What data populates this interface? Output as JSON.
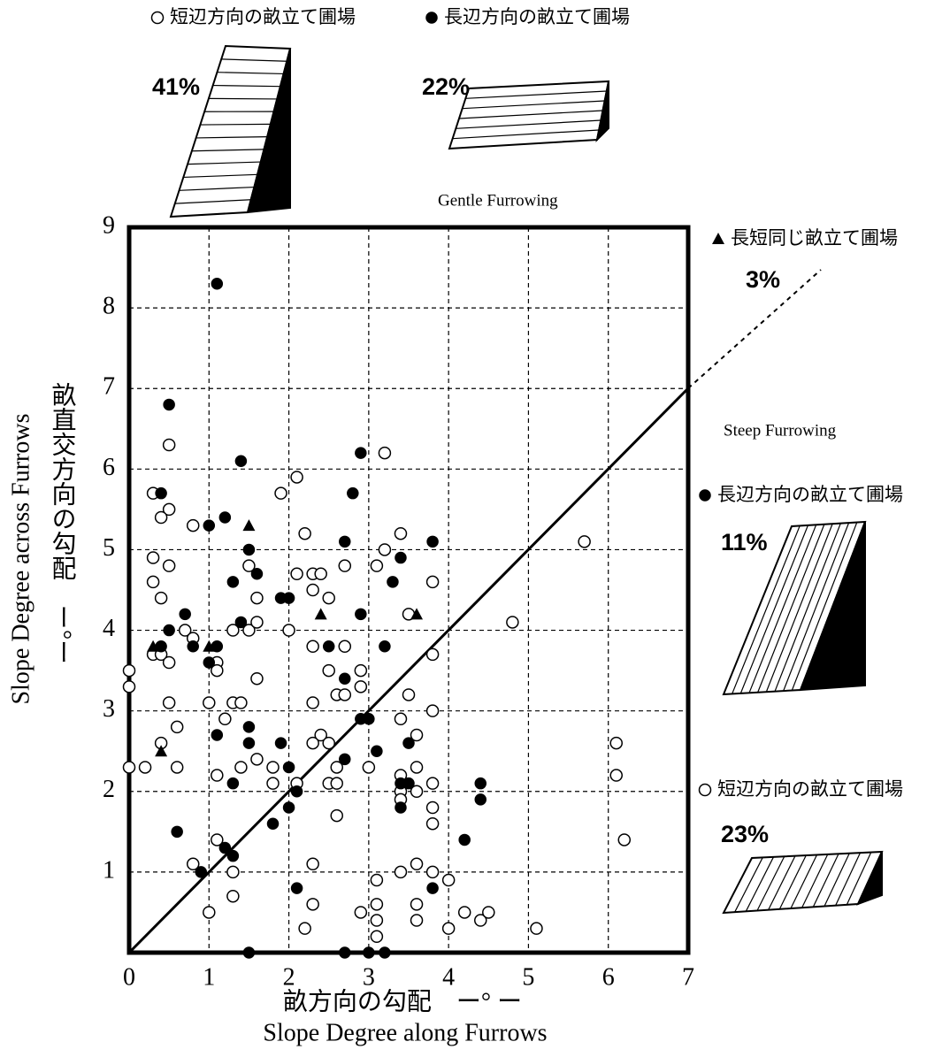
{
  "chart_data": {
    "type": "scatter",
    "xlabel": "畝方向の勾配　ー° ー",
    "xlabel_en": "Slope Degree along Furrows",
    "ylabel": "畝直交方向の勾配　ー°ー",
    "ylabel_en": "Slope Degree across Furrows",
    "xlim": [
      0,
      7
    ],
    "xticks": [
      0,
      1,
      2,
      3,
      4,
      5,
      6,
      7
    ],
    "ylim": [
      0,
      9
    ],
    "yticks": [
      1,
      2,
      3,
      4,
      5,
      6,
      7,
      8,
      9
    ],
    "grid": true,
    "series": [
      {
        "name": "短辺方向の畝立て圃場",
        "marker": "circle-open",
        "color": "#000000",
        "x": [
          0,
          0,
          0,
          0.2,
          0.3,
          0.5,
          0.5,
          0.4,
          0.8,
          0.3,
          0.5,
          0.3,
          0.4,
          0.7,
          0.8,
          0.3,
          0.4,
          0.5,
          1.1,
          1.1,
          0.5,
          1.0,
          1.3,
          1.4,
          0.6,
          1.2,
          0.4,
          0.6,
          1.1,
          1.4,
          1.6,
          1.8,
          1.8,
          2.1,
          0.8,
          1.1,
          1.3,
          1.0,
          1.3,
          1.5,
          1.6,
          1.6,
          1.5,
          1.6,
          1.9,
          2.1,
          2.2,
          2.1,
          2.3,
          2.3,
          2.4,
          2.5,
          2.0,
          2.3,
          2.7,
          2.5,
          2.6,
          2.7,
          2.9,
          2.9,
          2.7,
          3.1,
          3.2,
          3.2,
          3.4,
          3.5,
          3.8,
          3.8,
          3.8,
          3.5,
          3.4,
          3.6,
          2.3,
          2.4,
          2.3,
          2.5,
          2.6,
          2.5,
          2.6,
          3.0,
          3.4,
          3.4,
          3.4,
          3.6,
          3.6,
          3.8,
          3.8,
          3.8,
          2.6,
          2.3,
          1.3,
          2.2,
          2.3,
          2.9,
          3.1,
          3.1,
          3.1,
          3.1,
          3.4,
          3.6,
          3.6,
          3.6,
          3.8,
          4.0,
          4.0,
          4.2,
          4.4,
          4.5,
          4.8,
          5.1,
          5.7,
          6.1,
          6.1,
          6.2
        ],
        "values": [
          3.5,
          3.3,
          2.3,
          2.3,
          5.7,
          6.3,
          5.5,
          5.4,
          5.3,
          4.9,
          4.8,
          4.6,
          4.4,
          4.0,
          3.9,
          3.7,
          3.7,
          3.6,
          3.6,
          3.5,
          3.1,
          3.1,
          3.1,
          3.1,
          2.8,
          2.9,
          2.6,
          2.3,
          2.2,
          2.3,
          2.4,
          2.1,
          2.3,
          2.1,
          1.1,
          1.4,
          0.7,
          0.5,
          4.0,
          4.0,
          4.1,
          4.4,
          4.8,
          3.4,
          5.7,
          5.9,
          5.2,
          4.7,
          4.7,
          4.5,
          4.7,
          4.4,
          4.0,
          3.8,
          3.8,
          3.5,
          3.2,
          3.2,
          3.3,
          3.5,
          4.8,
          4.8,
          5.0,
          6.2,
          5.2,
          4.2,
          4.6,
          3.7,
          3.0,
          3.2,
          2.9,
          2.7,
          3.1,
          2.7,
          2.6,
          2.6,
          2.3,
          2.1,
          2.1,
          2.3,
          2.2,
          2.0,
          1.9,
          2.3,
          2.0,
          2.1,
          1.8,
          1.6,
          1.7,
          1.1,
          1.0,
          0.3,
          0.6,
          0.5,
          0.9,
          0.6,
          0.4,
          0.2,
          1.0,
          1.1,
          0.6,
          0.4,
          1.0,
          0.9,
          0.3,
          0.5,
          0.4,
          0.5,
          4.1,
          0.3,
          5.1,
          2.6,
          2.2,
          1.4
        ]
      },
      {
        "name": "長辺方向の畝立て圃場",
        "marker": "circle",
        "color": "#000000",
        "x": [
          1.1,
          0.5,
          1.4,
          2.9,
          2.8,
          0.4,
          1.2,
          1.0,
          1.5,
          3.8,
          2.7,
          3.4,
          3.3,
          1.3,
          1.6,
          1.9,
          2.0,
          0.7,
          2.9,
          0.5,
          1.4,
          0.4,
          0.8,
          1.1,
          2.5,
          3.2,
          1.0,
          2.7,
          1.5,
          2.9,
          3.0,
          1.1,
          1.9,
          1.5,
          3.5,
          3.1,
          2.7,
          2.0,
          1.3,
          3.4,
          3.5,
          4.4,
          2.1,
          2.0,
          3.4,
          4.4,
          1.8,
          0.6,
          4.2,
          1.2,
          1.3,
          0.9,
          2.1,
          3.8,
          1.5,
          2.7,
          3.0,
          3.2
        ],
        "values": [
          8.3,
          6.8,
          6.1,
          6.2,
          5.7,
          5.7,
          5.4,
          5.3,
          5.0,
          5.1,
          5.1,
          4.9,
          4.6,
          4.6,
          4.7,
          4.4,
          4.4,
          4.2,
          4.2,
          4.0,
          4.1,
          3.8,
          3.8,
          3.8,
          3.8,
          3.8,
          3.6,
          3.4,
          2.8,
          2.9,
          2.9,
          2.7,
          2.6,
          2.6,
          2.6,
          2.5,
          2.4,
          2.3,
          2.1,
          2.1,
          2.1,
          2.1,
          2.0,
          1.8,
          1.8,
          1.9,
          1.6,
          1.5,
          1.4,
          1.3,
          1.2,
          1.0,
          0.8,
          0.8,
          0,
          0,
          0,
          0
        ]
      },
      {
        "name": "長短同じ畝立て圃場",
        "marker": "triangle",
        "color": "#000000",
        "x": [
          1.5,
          2.4,
          3.6,
          0.3,
          1.0,
          0.4
        ],
        "values": [
          5.3,
          4.2,
          4.2,
          3.8,
          3.8,
          2.5
        ]
      }
    ],
    "annotations": [
      "41%",
      "22%",
      "Gentle Furrowing",
      "3%",
      "Steep Furrowing",
      "11%",
      "23%"
    ]
  }
}
